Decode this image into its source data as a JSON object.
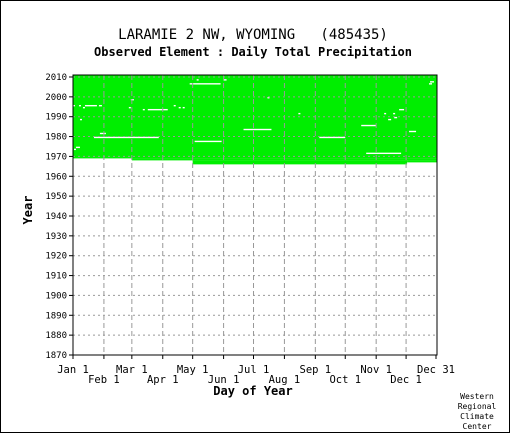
{
  "chart_data": {
    "type": "heatmap",
    "title": "LARAMIE 2 NW, WYOMING   (485435)",
    "subtitle": "Observed Element : Daily Total Precipitation",
    "xlabel": "Day of Year",
    "ylabel": "Year",
    "xlim": [
      1,
      366
    ],
    "ylim": [
      1870,
      2011
    ],
    "y_ticks": [
      1870,
      1880,
      1890,
      1900,
      1910,
      1920,
      1930,
      1940,
      1950,
      1960,
      1970,
      1980,
      1990,
      2000,
      2010
    ],
    "x_ticks_upper": [
      {
        "label": "Jan 1",
        "day": 1
      },
      {
        "label": "Mar 1",
        "day": 60
      },
      {
        "label": "May 1",
        "day": 121
      },
      {
        "label": "Jul 1",
        "day": 182
      },
      {
        "label": "Sep 1",
        "day": 244
      },
      {
        "label": "Nov 1",
        "day": 305
      },
      {
        "label": "Dec 31",
        "day": 365
      }
    ],
    "x_ticks_lower": [
      {
        "label": "Feb 1",
        "day": 32
      },
      {
        "label": "Apr 1",
        "day": 91
      },
      {
        "label": "Jun 1",
        "day": 152
      },
      {
        "label": "Aug 1",
        "day": 213
      },
      {
        "label": "Oct 1",
        "day": 274
      },
      {
        "label": "Dec 1",
        "day": 335
      }
    ],
    "grid": true,
    "series": [
      {
        "color": "#00ee00",
        "coverage_blocks": [
          {
            "day_start": 1,
            "day_end": 366,
            "year_start": 1969,
            "year_end": 2011
          },
          {
            "day_start": 60,
            "day_end": 366,
            "year_start": 1968,
            "year_end": 1969
          },
          {
            "day_start": 121,
            "day_end": 336,
            "year_start": 1966,
            "year_end": 1968
          },
          {
            "day_start": 336,
            "day_end": 366,
            "year_start": 1967,
            "year_end": 1968
          }
        ],
        "missing_segments": [
          {
            "year": 2006,
            "day_start": 118,
            "day_end": 149
          },
          {
            "year": 2008,
            "day_start": 125,
            "day_end": 127
          },
          {
            "year": 2008,
            "day_start": 152,
            "day_end": 155
          },
          {
            "year": 2007,
            "day_start": 359,
            "day_end": 363
          },
          {
            "year": 1995,
            "day_start": 1,
            "day_end": 3
          },
          {
            "year": 1995,
            "day_start": 7,
            "day_end": 9
          },
          {
            "year": 1995,
            "day_start": 13,
            "day_end": 25
          },
          {
            "year": 1995,
            "day_start": 27,
            "day_end": 30
          },
          {
            "year": 1994,
            "day_start": 11,
            "day_end": 13
          },
          {
            "year": 1994,
            "day_start": 57,
            "day_end": 59
          },
          {
            "year": 1993,
            "day_start": 71,
            "day_end": 73
          },
          {
            "year": 1995,
            "day_start": 102,
            "day_end": 104
          },
          {
            "year": 1994,
            "day_start": 107,
            "day_end": 109
          },
          {
            "year": 1994,
            "day_start": 111,
            "day_end": 113
          },
          {
            "year": 1993,
            "day_start": 76,
            "day_end": 96
          },
          {
            "year": 1988,
            "day_start": 8,
            "day_end": 10
          },
          {
            "year": 1981,
            "day_start": 28,
            "day_end": 34
          },
          {
            "year": 1979,
            "day_start": 22,
            "day_end": 87
          },
          {
            "year": 1974,
            "day_start": 4,
            "day_end": 8
          },
          {
            "year": 1973,
            "day_start": 2,
            "day_end": 4
          },
          {
            "year": 1991,
            "day_start": 227,
            "day_end": 229
          },
          {
            "year": 1991,
            "day_start": 313,
            "day_end": 315
          },
          {
            "year": 1993,
            "day_start": 328,
            "day_end": 333
          },
          {
            "year": 1991,
            "day_start": 322,
            "day_end": 324
          },
          {
            "year": 1989,
            "day_start": 323,
            "day_end": 326
          },
          {
            "year": 1988,
            "day_start": 317,
            "day_end": 320
          },
          {
            "year": 1985,
            "day_start": 290,
            "day_end": 305
          },
          {
            "year": 1982,
            "day_start": 338,
            "day_end": 345
          },
          {
            "year": 1983,
            "day_start": 172,
            "day_end": 200
          },
          {
            "year": 1979,
            "day_start": 248,
            "day_end": 274
          },
          {
            "year": 1977,
            "day_start": 123,
            "day_end": 150
          },
          {
            "year": 1971,
            "day_start": 295,
            "day_end": 330
          },
          {
            "year": 1999,
            "day_start": 196,
            "day_end": 198
          },
          {
            "year": 2006,
            "day_start": 358,
            "day_end": 361
          },
          {
            "year": 1998,
            "day_start": 59,
            "day_end": 62
          }
        ]
      }
    ]
  },
  "footer": {
    "credit_lines": [
      "Western",
      "Regional",
      "Climate",
      "Center"
    ]
  },
  "colors": {
    "data": "#00ee00",
    "missing": "#ffffff",
    "grid": "#999999",
    "axis": "#000000"
  }
}
